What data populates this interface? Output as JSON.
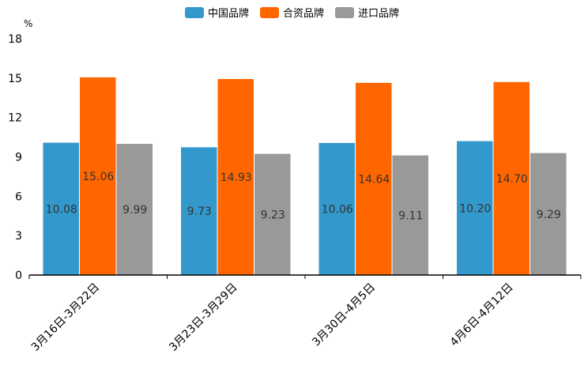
{
  "chart_data": {
    "type": "bar",
    "title": "",
    "xlabel": "",
    "ylabel": "",
    "unit": "%",
    "ylim": [
      0,
      18
    ],
    "yticks": [
      0,
      3,
      6,
      9,
      12,
      15,
      18
    ],
    "grid": false,
    "legend_position": "top-center",
    "categories": [
      "3月16日-3月22日",
      "3月23日-3月29日",
      "3月30日-4月5日",
      "4月6日-4月12日"
    ],
    "series": [
      {
        "name": "中国品牌",
        "color": "#3399cc",
        "values": [
          10.08,
          9.73,
          10.06,
          10.2
        ],
        "labels": [
          "10.08",
          "9.73",
          "10.06",
          "10.20"
        ]
      },
      {
        "name": "合资品牌",
        "color": "#ff6600",
        "values": [
          15.06,
          14.93,
          14.64,
          14.7
        ],
        "labels": [
          "15.06",
          "14.93",
          "14.64",
          "14.70"
        ]
      },
      {
        "name": "进口品牌",
        "color": "#999999",
        "values": [
          9.99,
          9.23,
          9.11,
          9.29
        ],
        "labels": [
          "9.99",
          "9.23",
          "9.11",
          "9.29"
        ]
      }
    ]
  }
}
